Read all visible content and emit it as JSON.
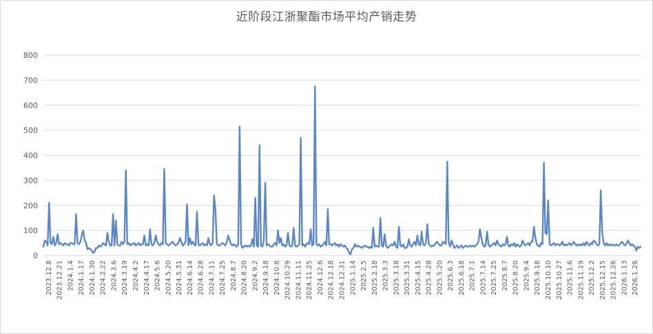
{
  "chart_data": {
    "type": "line",
    "title": "近阶段江浙聚酯市场平均产销走势",
    "xlabel": "",
    "ylabel": "",
    "ylim": [
      0,
      800
    ],
    "yticks": [
      0,
      100,
      200,
      300,
      400,
      500,
      600,
      700,
      800
    ],
    "grid": "horizontal",
    "legend": "none",
    "line_color": "#5b87c5",
    "x_tick_labels": [
      "2023.12.8",
      "2023.12.21",
      "2024.1.4",
      "2024.1.17",
      "2024.1.30",
      "2024.2.22",
      "2024.3.6",
      "2024.3.19",
      "2024.4.2",
      "2024.4.17",
      "2024.5.6",
      "2024.5.20",
      "2024.5.31",
      "2024.6.14",
      "2024.6.28",
      "2024.7.11",
      "2024.7.25",
      "2024.8.7",
      "2024.8.20",
      "2024.9.2",
      "2024.9.18",
      "2024.10.8",
      "2024.10.29",
      "2024.11.11",
      "2024.11.25",
      "2024.12.6",
      "2024.12.18",
      "2024.12.31",
      "2025.1.14",
      "2025.2.5",
      "2025.2.18",
      "2025.3.3",
      "2025.3.18",
      "2025.3.31",
      "2025.4.15",
      "2025.4.28",
      "2025.5.20",
      "2025.6.3",
      "2025.6.18",
      "2025.7.1",
      "2025.7.14",
      "2025.7.25",
      "2025.8.7",
      "2025.8.20",
      "2025.9.4",
      "2025.9.18",
      "2025.10.10",
      "2025.10.27",
      "2025.11.6",
      "2025.11.19",
      "2025.12.2",
      "2025.12.15",
      "2025.12.26",
      "2026.1.13",
      "2026.1.26"
    ],
    "series": [
      {
        "values": [
          35,
          60,
          55,
          40,
          210,
          50,
          45,
          75,
          40,
          50,
          85,
          45,
          50,
          45,
          40,
          50,
          45,
          45,
          40,
          50,
          50,
          45,
          45,
          165,
          50,
          45,
          55,
          80,
          100,
          60,
          50,
          25,
          30,
          25,
          20,
          10,
          15,
          30,
          30,
          40,
          35,
          40,
          50,
          45,
          40,
          90,
          55,
          40,
          40,
          165,
          40,
          140,
          45,
          40,
          40,
          55,
          45,
          55,
          340,
          45,
          50,
          40,
          45,
          45,
          50,
          40,
          45,
          50,
          40,
          45,
          45,
          80,
          40,
          45,
          40,
          105,
          45,
          40,
          50,
          80,
          55,
          45,
          40,
          50,
          45,
          345,
          50,
          45,
          40,
          45,
          50,
          55,
          45,
          40,
          45,
          50,
          70,
          55,
          40,
          45,
          55,
          205,
          40,
          70,
          45,
          55,
          45,
          40,
          175,
          45,
          40,
          45,
          50,
          40,
          45,
          40,
          70,
          45,
          40,
          50,
          240,
          180,
          45,
          40,
          40,
          45,
          50,
          45,
          40,
          55,
          80,
          60,
          45,
          40,
          45,
          40,
          35,
          45,
          515,
          45,
          30,
          35,
          40,
          35,
          40,
          35,
          40,
          65,
          35,
          230,
          40,
          35,
          440,
          40,
          35,
          60,
          290,
          40,
          45,
          40,
          35,
          35,
          45,
          50,
          40,
          100,
          50,
          70,
          40,
          45,
          35,
          40,
          90,
          40,
          35,
          40,
          110,
          40,
          35,
          40,
          45,
          470,
          40,
          45,
          35,
          45,
          50,
          45,
          105,
          40,
          45,
          675,
          45,
          40,
          45,
          35,
          40,
          45,
          55,
          40,
          185,
          45,
          45,
          40,
          45,
          50,
          40,
          45,
          35,
          45,
          40,
          35,
          40,
          30,
          25,
          10,
          5,
          25,
          30,
          45,
          35,
          40,
          35,
          35,
          30,
          35,
          40,
          35,
          35,
          30,
          35,
          30,
          110,
          35,
          40,
          35,
          35,
          150,
          40,
          35,
          85,
          40,
          30,
          35,
          40,
          45,
          40,
          55,
          35,
          30,
          115,
          40,
          35,
          45,
          30,
          30,
          35,
          65,
          40,
          35,
          45,
          55,
          40,
          80,
          45,
          40,
          95,
          45,
          40,
          50,
          125,
          45,
          40,
          35,
          40,
          40,
          50,
          55,
          45,
          40,
          40,
          55,
          50,
          45,
          375,
          55,
          35,
          60,
          45,
          30,
          35,
          40,
          30,
          35,
          40,
          30,
          35,
          40,
          35,
          35,
          40,
          35,
          40,
          35,
          40,
          45,
          55,
          105,
          70,
          45,
          35,
          40,
          95,
          45,
          35,
          40,
          45,
          50,
          40,
          60,
          45,
          40,
          35,
          45,
          40,
          45,
          75,
          40,
          35,
          45,
          40,
          50,
          35,
          45,
          40,
          35,
          40,
          60,
          45,
          40,
          45,
          50,
          40,
          55,
          55,
          115,
          70,
          45,
          40,
          35,
          50,
          45,
          370,
          90,
          85,
          220,
          45,
          40,
          45,
          50,
          40,
          45,
          45,
          40,
          45,
          55,
          40,
          45,
          40,
          45,
          50,
          40,
          45,
          55,
          45,
          40,
          45,
          40,
          45,
          40,
          50,
          40,
          55,
          45,
          40,
          50,
          45,
          60,
          55,
          45,
          40,
          45,
          260,
          90,
          50,
          40,
          50,
          40,
          45,
          40,
          45,
          40,
          40,
          45,
          40,
          40,
          50,
          55,
          45,
          40,
          45,
          60,
          50,
          40,
          45,
          40,
          35,
          20,
          35,
          30,
          35
        ]
      }
    ]
  }
}
